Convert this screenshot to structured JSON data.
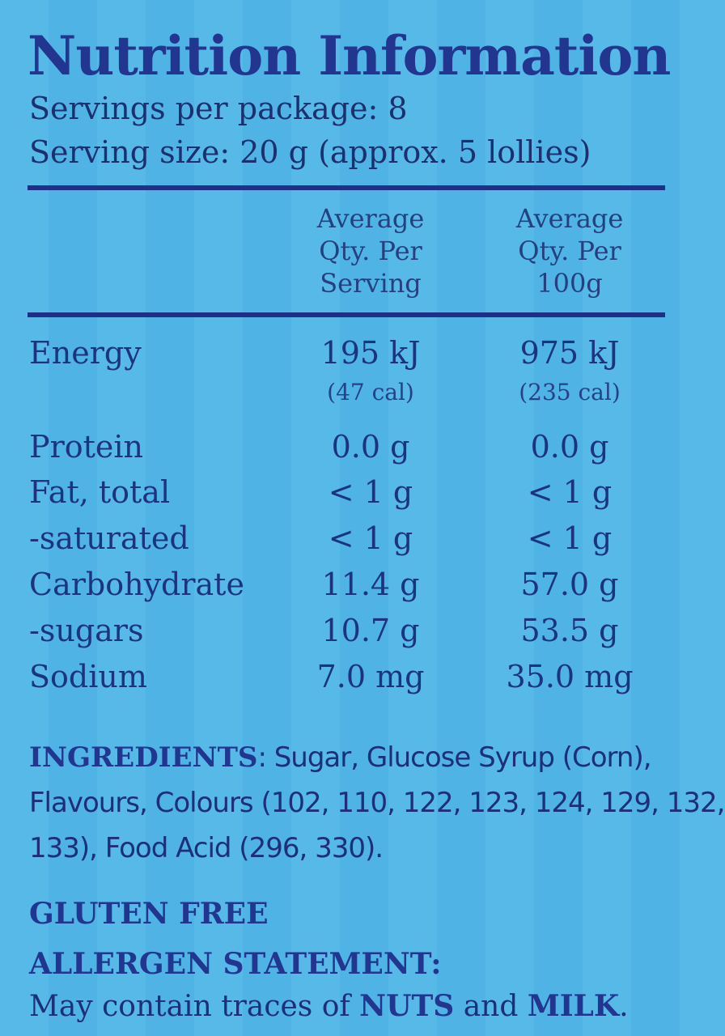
{
  "title": "Nutrition Information",
  "servings_per_package": "Servings per package: 8",
  "serving_size": "Serving size: 20 g (approx. 5 lollies)",
  "columns": {
    "per_serving": [
      "Average",
      "Qty. Per",
      "Serving"
    ],
    "per_100g": [
      "Average",
      "Qty. Per",
      "100g"
    ]
  },
  "rows": [
    {
      "label": "Energy",
      "per_serving": "195 kJ",
      "per_100g": "975 kJ"
    },
    {
      "label": "Protein",
      "per_serving": "0.0 g",
      "per_100g": "0.0 g"
    },
    {
      "label": "Fat, total",
      "per_serving": "< 1 g",
      "per_100g": "< 1 g"
    },
    {
      "label": "-saturated",
      "per_serving": "< 1 g",
      "per_100g": "< 1 g"
    },
    {
      "label": "Carbohydrate",
      "per_serving": "11.4 g",
      "per_100g": "57.0 g"
    },
    {
      "label": "-sugars",
      "per_serving": "10.7 g",
      "per_100g": "53.5 g"
    },
    {
      "label": "Sodium",
      "per_serving": "7.0 mg",
      "per_100g": "35.0 mg"
    }
  ],
  "energy_cal": {
    "per_serving": "(47 cal)",
    "per_100g": "(235 cal)"
  },
  "ingredients": {
    "heading": "INGREDIENTS",
    "text": ": Sugar, Glucose Syrup (Corn), Flavours, Colours (102, 110, 122, 123, 124, 129, 132, 133), Food Acid (296, 330)."
  },
  "gluten_free": "GLUTEN FREE",
  "allergen": {
    "heading": "ALLERGEN STATEMENT:",
    "prefix": "May contain traces of ",
    "nuts": "NUTS",
    "and": " and ",
    "milk": "MILK",
    "suffix": "."
  },
  "colors": {
    "background": "#56b9e8",
    "text": "#1c3485",
    "rule": "#1f2f86"
  }
}
